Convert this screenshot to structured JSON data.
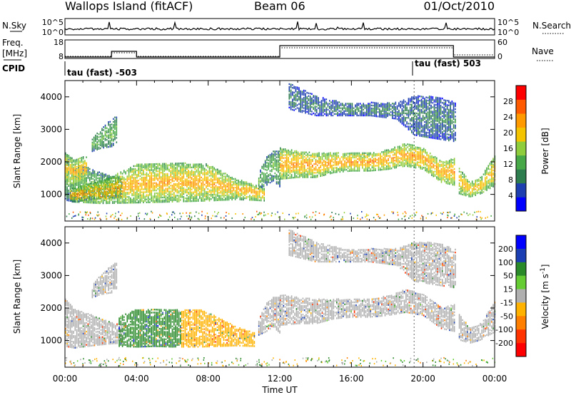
{
  "header": {
    "station": "Wallops Island (fitACF)",
    "beam": "Beam 06",
    "date": "01/Oct/2010"
  },
  "noise_panel": {
    "left_label": "N.Sky",
    "left_ticks": [
      "10^5",
      "10^0"
    ],
    "right_label": "N.Search",
    "right_ticks": [
      "10^5",
      "10^0"
    ]
  },
  "freq_panel": {
    "left_label_1": "Freq.",
    "left_label_2": "[MHz]",
    "left_ticks": [
      "18",
      "8"
    ],
    "right_label": "Nave",
    "right_ticks": [
      "60",
      "0"
    ]
  },
  "cpid_panel": {
    "label": "CPID",
    "segments": [
      {
        "label": "tau (fast) -503",
        "start_hour": 0
      },
      {
        "label": "tau (fast) 503",
        "start_hour": 19.5
      }
    ]
  },
  "colors": {
    "power_scale": [
      "#0000ff",
      "#1d3fb0",
      "#2e7d4f",
      "#47a847",
      "#8fcd3c",
      "#f5c400",
      "#ff9a00",
      "#ff5a00",
      "#ff0000"
    ],
    "velocity_scale": [
      "#0000ff",
      "#1b3fb2",
      "#2a8a2a",
      "#66cc33",
      "#b0b0b0",
      "#ffb300",
      "#ff7f00",
      "#ff3300",
      "#ff0000"
    ]
  },
  "chart_data": [
    {
      "type": "heatmap",
      "panel": "power",
      "ylabel": "Slant Range [km]",
      "ylim": [
        180,
        4500
      ],
      "yticks": [
        "1000",
        "2000",
        "3000",
        "4000"
      ],
      "colorbar": {
        "label": "Power [dB]",
        "ticks": [
          "4",
          "8",
          "12",
          "16",
          "20",
          "24",
          "28"
        ],
        "range": [
          0,
          32
        ]
      },
      "bands": [
        {
          "hours": [
            0,
            0.5,
            1.5,
            2.5,
            3.2
          ],
          "lo": [
            800,
            750,
            820,
            880,
            900
          ],
          "hi": [
            2250,
            1950,
            1750,
            1550,
            1450
          ],
          "power": 14
        },
        {
          "hours": [
            0,
            0.5,
            1.2
          ],
          "lo": [
            1350,
            1250,
            1400
          ],
          "hi": [
            2250,
            2050,
            2150
          ],
          "power": 22
        },
        {
          "hours": [
            1.5,
            2.0,
            2.6,
            2.9
          ],
          "lo": [
            2300,
            2400,
            2450,
            2600
          ],
          "hi": [
            2700,
            3000,
            3300,
            3400
          ],
          "power": 14
        },
        {
          "hours": [
            0.3,
            2,
            4,
            6,
            8,
            9.5,
            10.5,
            11.1
          ],
          "lo": [
            750,
            700,
            720,
            750,
            780,
            820,
            800,
            780
          ],
          "hi": [
            1150,
            1400,
            1900,
            1950,
            1900,
            1450,
            1300,
            1150
          ],
          "power": 23
        },
        {
          "hours": [
            10.8,
            11.2,
            11.6,
            12.0
          ],
          "lo": [
            1150,
            1250,
            1400,
            1200
          ],
          "hi": [
            1600,
            2100,
            2300,
            2300
          ],
          "power": 14
        },
        {
          "hours": [
            12.0,
            13,
            14,
            15,
            16,
            17,
            18,
            19,
            20,
            21,
            21.8
          ],
          "lo": [
            1450,
            1500,
            1500,
            1650,
            1700,
            1700,
            1750,
            1850,
            1750,
            1350,
            1250
          ],
          "hi": [
            2400,
            2300,
            2250,
            2250,
            2250,
            2250,
            2350,
            2550,
            2400,
            2000,
            2100
          ],
          "power": 24
        },
        {
          "hours": [
            22.0,
            22.6,
            23.2,
            24.0
          ],
          "lo": [
            1000,
            900,
            1000,
            1250
          ],
          "hi": [
            1800,
            1350,
            1500,
            2200
          ],
          "power": 22
        },
        {
          "hours": [
            12.5,
            14,
            15.5,
            17,
            18.5,
            19.5,
            20.6,
            21.8
          ],
          "lo": [
            3600,
            3400,
            3400,
            3400,
            3300,
            2800,
            2700,
            2600
          ],
          "hi": [
            4400,
            4000,
            3800,
            3800,
            3800,
            4000,
            4000,
            3800
          ],
          "power": 9
        }
      ]
    },
    {
      "type": "heatmap",
      "panel": "velocity",
      "ylabel": "Slant Range [km]",
      "xlabel": "Time UT",
      "xticks": [
        "00:00",
        "04:00",
        "08:00",
        "12:00",
        "16:00",
        "20:00",
        "00:00"
      ],
      "xlim": [
        0,
        24
      ],
      "ylim": [
        180,
        4500
      ],
      "yticks": [
        "1000",
        "2000",
        "3000",
        "4000"
      ],
      "colorbar": {
        "label": "Velocity [m s^-1]",
        "ticks": [
          "200",
          "100",
          "50",
          "15",
          "-15",
          "-50",
          "-100",
          "-200"
        ],
        "range": [
          -250,
          250
        ]
      },
      "bands": [
        {
          "hours": [
            0,
            0.5,
            1.5,
            2.5,
            3.2
          ],
          "lo": [
            800,
            750,
            820,
            880,
            900
          ],
          "hi": [
            2250,
            1950,
            1750,
            1550,
            1450
          ],
          "vel": 0
        },
        {
          "hours": [
            1.5,
            2.0,
            2.6,
            2.9
          ],
          "lo": [
            2300,
            2400,
            2450,
            2600
          ],
          "hi": [
            2700,
            3000,
            3300,
            3400
          ],
          "vel": 0
        },
        {
          "hours": [
            3.0,
            4,
            5,
            6,
            6.5
          ],
          "lo": [
            800,
            780,
            800,
            780,
            800
          ],
          "hi": [
            1700,
            1950,
            1950,
            1950,
            1900
          ],
          "vel": 40
        },
        {
          "hours": [
            6.5,
            7.5,
            8.5,
            9.5,
            10.6
          ],
          "lo": [
            780,
            780,
            800,
            820,
            800
          ],
          "hi": [
            1900,
            1950,
            1700,
            1400,
            1200
          ],
          "vel": -40
        },
        {
          "hours": [
            10.8,
            11.2,
            11.6,
            12.0
          ],
          "lo": [
            1150,
            1250,
            1400,
            1200
          ],
          "hi": [
            1600,
            2100,
            2300,
            2300
          ],
          "vel": 0
        },
        {
          "hours": [
            12.0,
            13,
            14,
            15,
            16,
            17,
            18,
            19,
            20,
            21,
            21.8
          ],
          "lo": [
            1450,
            1500,
            1500,
            1650,
            1700,
            1700,
            1750,
            1850,
            1750,
            1350,
            1250
          ],
          "hi": [
            2400,
            2300,
            2250,
            2250,
            2250,
            2250,
            2350,
            2550,
            2400,
            2000,
            2100
          ],
          "vel": 0
        },
        {
          "hours": [
            22.0,
            22.6,
            23.2,
            24.0
          ],
          "lo": [
            1000,
            900,
            1000,
            1250
          ],
          "hi": [
            1800,
            1350,
            1500,
            2200
          ],
          "vel": 0
        },
        {
          "hours": [
            12.5,
            14,
            15.5,
            17,
            18.5,
            19.5,
            20.6,
            21.8
          ],
          "lo": [
            3600,
            3400,
            3400,
            3400,
            3300,
            2800,
            2700,
            2600
          ],
          "hi": [
            4400,
            4000,
            3800,
            3800,
            3800,
            4000,
            4000,
            3800
          ],
          "vel": 0
        }
      ]
    }
  ]
}
